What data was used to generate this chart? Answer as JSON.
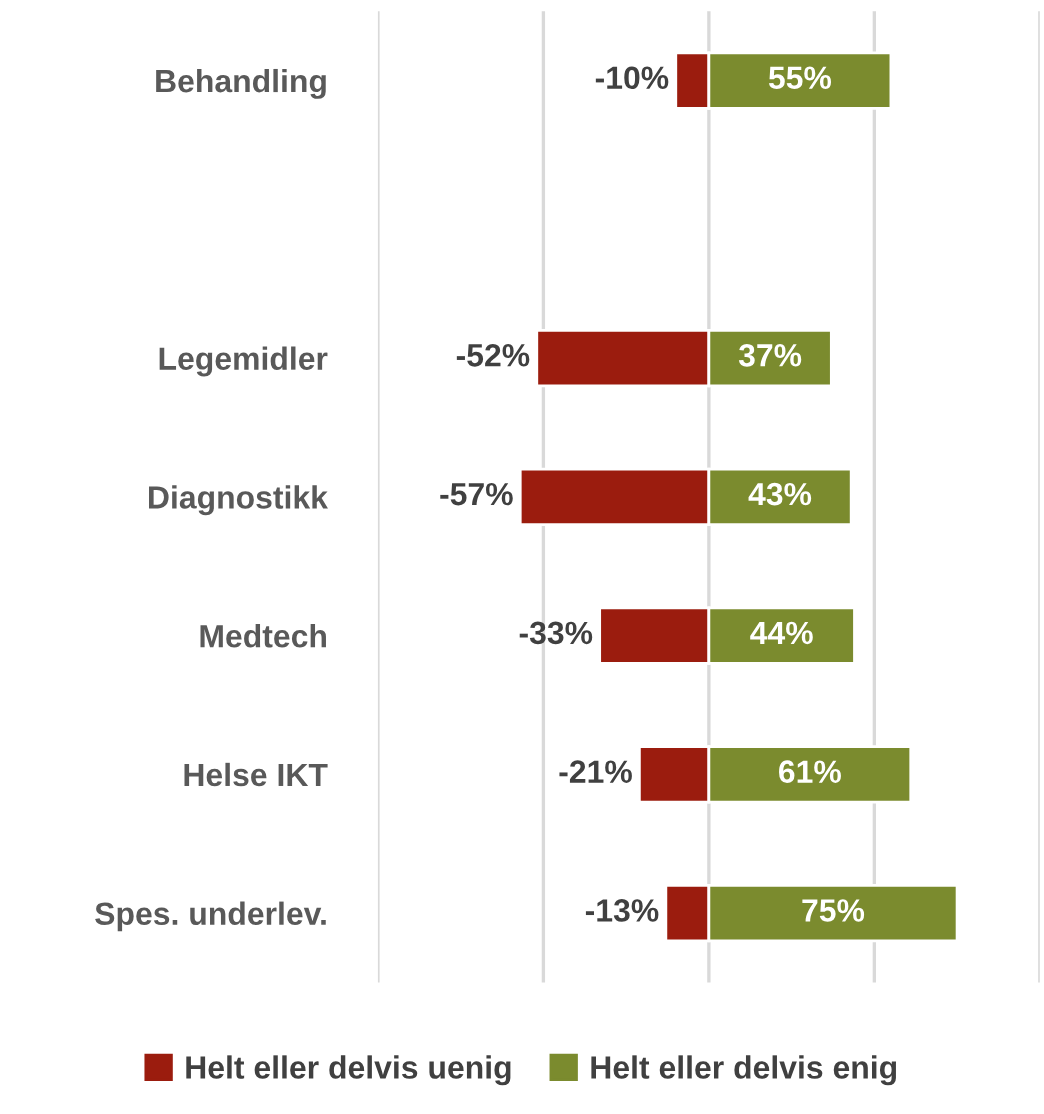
{
  "chart_data": {
    "type": "bar",
    "orientation": "horizontal",
    "categories": [
      "Behandling",
      null,
      "Legemidler",
      "Diagnostikk",
      "Medtech",
      "Helse IKT",
      "Spes. underlev."
    ],
    "series": [
      {
        "name": "Helt eller delvis uenig",
        "color": "#9b1c0e",
        "values": [
          -10,
          null,
          -52,
          -57,
          -33,
          -21,
          -13
        ],
        "value_labels": [
          "-10%",
          null,
          "-52%",
          "-57%",
          "-33%",
          "-21%",
          "-13%"
        ]
      },
      {
        "name": "Helt eller delvis enig",
        "color": "#7b8b2e",
        "values": [
          55,
          null,
          37,
          43,
          44,
          61,
          75
        ],
        "value_labels": [
          "55%",
          null,
          "37%",
          "43%",
          "44%",
          "61%",
          "75%"
        ]
      }
    ],
    "xlim": [
      -100,
      100
    ],
    "stacked": true,
    "xticks": [
      {
        "value": -100,
        "label": null
      },
      {
        "value": -50,
        "label": null
      },
      {
        "value": 0,
        "label": null
      },
      {
        "value": 50,
        "label": null
      },
      {
        "value": 100,
        "label": null
      }
    ],
    "grid": "x",
    "legend": "bottom"
  }
}
